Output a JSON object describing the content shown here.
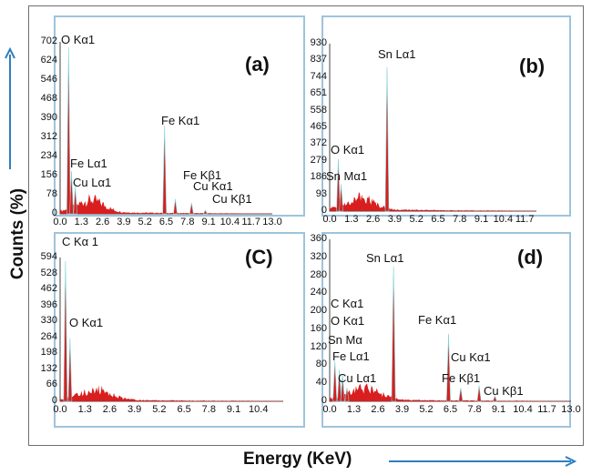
{
  "ylabel": "Counts (%)",
  "xlabel": "Energy (KeV)",
  "colors": {
    "spectrum": "#d81e1e",
    "arrow": "#2e7fbf",
    "panel_border": "#9fc3dc"
  },
  "chart_data": [
    {
      "panel": "(a)",
      "type": "area",
      "yticks": [
        "702",
        "624",
        "546",
        "468",
        "390",
        "312",
        "234",
        "156",
        "78",
        "0"
      ],
      "xticks": [
        "0.0",
        "1.3",
        "2.6",
        "3.9",
        "5.2",
        "6.5",
        "7.8",
        "9.1",
        "10.4",
        "11.7",
        "13.0"
      ],
      "ylim": [
        0,
        702
      ],
      "xlim": [
        0,
        13.0
      ],
      "peaks": [
        {
          "label": "O Kα1",
          "x": 0.52,
          "y": 680
        },
        {
          "label": "Fe Lα1",
          "x": 0.7,
          "y": 175
        },
        {
          "label": "Cu Lα1",
          "x": 0.93,
          "y": 110
        },
        {
          "label": "Fe Kα1",
          "x": 6.4,
          "y": 360
        },
        {
          "label": "Fe Kβ1",
          "x": 7.06,
          "y": 60
        },
        {
          "label": "Cu Kα1",
          "x": 8.05,
          "y": 45
        },
        {
          "label": "Cu Kβ1",
          "x": 8.9,
          "y": 15
        }
      ]
    },
    {
      "panel": "(b)",
      "type": "area",
      "yticks": [
        "930",
        "837",
        "744",
        "651",
        "558",
        "465",
        "372",
        "279",
        "186",
        "93",
        "0"
      ],
      "xticks": [
        "0.0",
        "1.3",
        "2.6",
        "3.9",
        "5.2",
        "6.5",
        "7.8",
        "9.1",
        "10.4",
        "11.7"
      ],
      "ylim": [
        0,
        930
      ],
      "xlim": [
        0,
        12.4
      ],
      "peaks": [
        {
          "label": "O Kα1",
          "x": 0.52,
          "y": 290
        },
        {
          "label": "Sn Mα1",
          "x": 0.69,
          "y": 150
        },
        {
          "label": "Sn Lα1",
          "x": 3.44,
          "y": 800
        }
      ]
    },
    {
      "panel": "(C)",
      "type": "area",
      "yticks": [
        "594",
        "528",
        "462",
        "396",
        "330",
        "264",
        "198",
        "132",
        "66",
        "0"
      ],
      "xticks": [
        "0.0",
        "1.3",
        "2.6",
        "3.9",
        "5.2",
        "6.5",
        "7.8",
        "9.1",
        "10.4"
      ],
      "ylim": [
        0,
        594
      ],
      "xlim": [
        0,
        11.7
      ],
      "peaks": [
        {
          "label": "C Kα 1",
          "x": 0.28,
          "y": 580
        },
        {
          "label": "O Kα1",
          "x": 0.52,
          "y": 260
        }
      ]
    },
    {
      "panel": "(d)",
      "type": "area",
      "yticks": [
        "360",
        "320",
        "280",
        "240",
        "200",
        "160",
        "120",
        "80",
        "40",
        "0"
      ],
      "xticks": [
        "0.0",
        "1.3",
        "2.6",
        "3.9",
        "5.2",
        "6.5",
        "7.8",
        "9.1",
        "10.4",
        "11.7",
        "13.0"
      ],
      "ylim": [
        0,
        360
      ],
      "xlim": [
        0,
        13.0
      ],
      "peaks": [
        {
          "label": "C Kα1",
          "x": 0.28,
          "y": 90
        },
        {
          "label": "O Kα1",
          "x": 0.52,
          "y": 70
        },
        {
          "label": "Sn Mα",
          "x": 0.69,
          "y": 60
        },
        {
          "label": "Fe Lα1",
          "x": 0.7,
          "y": 50
        },
        {
          "label": "Cu Lα1",
          "x": 0.93,
          "y": 30
        },
        {
          "label": "Sn Lα1",
          "x": 3.44,
          "y": 300
        },
        {
          "label": "Fe Kα1",
          "x": 6.4,
          "y": 150
        },
        {
          "label": "Cu Kα1",
          "x": 8.05,
          "y": 35
        },
        {
          "label": "Fe Kβ1",
          "x": 7.06,
          "y": 30
        },
        {
          "label": "Cu Kβ1",
          "x": 8.9,
          "y": 12
        }
      ]
    }
  ]
}
